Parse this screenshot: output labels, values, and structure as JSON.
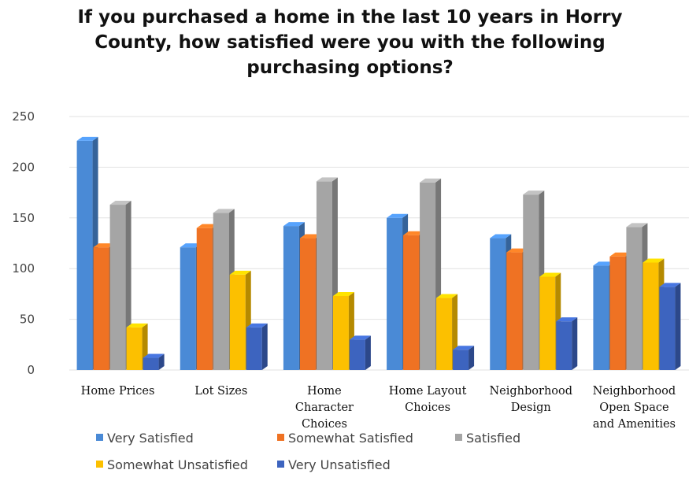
{
  "chart_data": {
    "type": "bar",
    "title": "If you purchased a home in the last 10 years in Horry County, how satisfied were you with the following purchasing options?",
    "categories": [
      [
        "Home Prices"
      ],
      [
        "Lot Sizes"
      ],
      [
        "Home",
        "Character",
        "Choices"
      ],
      [
        "Home Layout",
        "Choices"
      ],
      [
        "Neighborhood",
        "Design"
      ],
      [
        "Neighborhood",
        "Open Space",
        "and Amenities"
      ]
    ],
    "series": [
      {
        "name": "Very Satisfied",
        "color": "#4a8ad6",
        "values": [
          226,
          121,
          142,
          150,
          130,
          103
        ]
      },
      {
        "name": "Somewhat Satisfied",
        "color": "#ef7223",
        "values": [
          121,
          140,
          130,
          133,
          116,
          112
        ]
      },
      {
        "name": "Satisfied",
        "color": "#a5a5a5",
        "values": [
          163,
          155,
          186,
          185,
          173,
          141
        ]
      },
      {
        "name": "Somewhat Unsatisfied",
        "color": "#fcc000",
        "values": [
          42,
          94,
          73,
          71,
          92,
          106
        ]
      },
      {
        "name": "Very Unsatisfied",
        "color": "#3d64bf",
        "values": [
          12,
          42,
          30,
          20,
          48,
          82
        ]
      }
    ],
    "yticks": [
      0,
      50,
      100,
      150,
      200,
      250
    ],
    "ylim": [
      0,
      250
    ],
    "grid": true,
    "legend_position": "bottom"
  }
}
